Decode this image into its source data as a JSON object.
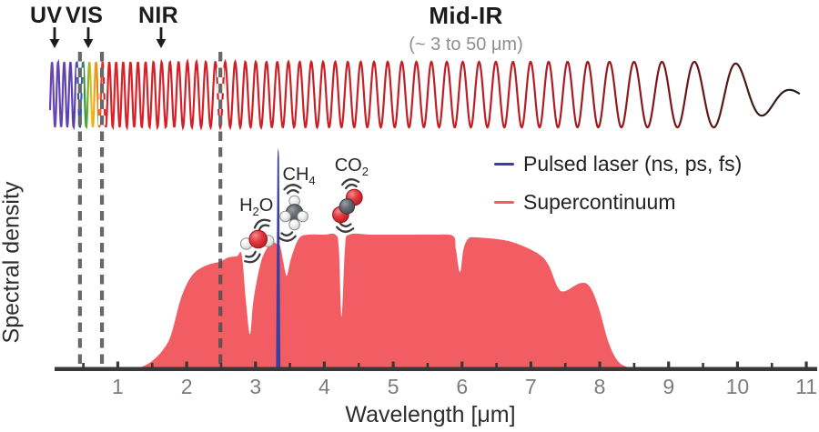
{
  "figure": {
    "regions": {
      "uv": "UV",
      "vis": "VIS",
      "nir": "NIR",
      "midir": "Mid-IR",
      "midir_range": "(~ 3 to 50 μm)"
    },
    "x_axis_label": "Wavelength [μm]",
    "y_axis_label": "Spectral density"
  },
  "legend": {
    "items": [
      {
        "label": "Pulsed laser (ns, ps, fs)",
        "color": "#3c3f9e"
      },
      {
        "label": "Supercontinuum",
        "color": "#f25d63"
      }
    ]
  },
  "chart_data": {
    "type": "area",
    "title": "",
    "xlabel": "Wavelength [μm]",
    "ylabel": "Spectral density",
    "xlim": [
      0.1,
      11.1
    ],
    "ylim": [
      0,
      1.8
    ],
    "grid": false,
    "legend_position": "upper right",
    "x_major_ticks": [
      1,
      2,
      3,
      4,
      5,
      6,
      7,
      8,
      9,
      10,
      11
    ],
    "x_minor_tick_step": 0.5,
    "spectral_region_boundaries_um": [
      0.45,
      0.77,
      2.49
    ],
    "regions": [
      {
        "label": "UV"
      },
      {
        "label": "VIS"
      },
      {
        "label": "NIR"
      },
      {
        "label": "Mid-IR",
        "range_note": "(~ 3 to 50 μm)"
      }
    ],
    "series": [
      {
        "name": "Supercontinuum",
        "type": "area",
        "color": "#f25d63",
        "points": [
          [
            1.27,
            0
          ],
          [
            1.4,
            0.03
          ],
          [
            1.52,
            0.07
          ],
          [
            1.65,
            0.14
          ],
          [
            1.77,
            0.25
          ],
          [
            1.9,
            0.5
          ],
          [
            2.0,
            0.63
          ],
          [
            2.1,
            0.71
          ],
          [
            2.2,
            0.75
          ],
          [
            2.33,
            0.78
          ],
          [
            2.49,
            0.8
          ],
          [
            2.6,
            0.83
          ],
          [
            2.73,
            0.84
          ],
          [
            2.8,
            0.85
          ],
          [
            2.86,
            0.51
          ],
          [
            2.92,
            0.26
          ],
          [
            2.97,
            0.51
          ],
          [
            3.07,
            0.78
          ],
          [
            3.17,
            0.9
          ],
          [
            3.26,
            0.94
          ],
          [
            3.31,
            0.93
          ],
          [
            3.36,
            0.91
          ],
          [
            3.43,
            0.73
          ],
          [
            3.46,
            0.7
          ],
          [
            3.52,
            0.83
          ],
          [
            3.63,
            0.97
          ],
          [
            3.76,
            1.0
          ],
          [
            4.0,
            1.0
          ],
          [
            4.16,
            1.0
          ],
          [
            4.21,
            0.9
          ],
          [
            4.25,
            0.39
          ],
          [
            4.3,
            0.9
          ],
          [
            4.36,
            1.0
          ],
          [
            4.7,
            1.0
          ],
          [
            5.2,
            1.0
          ],
          [
            5.6,
            1.0
          ],
          [
            5.87,
            0.99
          ],
          [
            5.91,
            0.89
          ],
          [
            5.97,
            0.72
          ],
          [
            6.02,
            0.89
          ],
          [
            6.09,
            0.97
          ],
          [
            6.2,
            0.98
          ],
          [
            6.6,
            0.96
          ],
          [
            6.86,
            0.92
          ],
          [
            7.13,
            0.85
          ],
          [
            7.26,
            0.77
          ],
          [
            7.39,
            0.61
          ],
          [
            7.49,
            0.58
          ],
          [
            7.72,
            0.64
          ],
          [
            7.86,
            0.61
          ],
          [
            7.99,
            0.45
          ],
          [
            8.12,
            0.21
          ],
          [
            8.25,
            0.07
          ],
          [
            8.38,
            0.02
          ],
          [
            8.58,
            0
          ]
        ]
      },
      {
        "name": "Pulsed laser (ns, ps, fs)",
        "type": "spike",
        "color": "#3c3f9e",
        "center_um": 3.33,
        "height": 1.72
      }
    ],
    "absorption_features": [
      {
        "molecule": "H2O",
        "label_pre": "H",
        "label_sub": "2",
        "label_post": "O",
        "wavelength_um": 2.92
      },
      {
        "molecule": "CH4",
        "label_pre": "CH",
        "label_sub": "4",
        "label_post": "",
        "wavelength_um": 3.46
      },
      {
        "molecule": "CO2",
        "label_pre": "CO",
        "label_sub": "2",
        "label_post": "",
        "wavelength_um": 4.25
      }
    ]
  }
}
